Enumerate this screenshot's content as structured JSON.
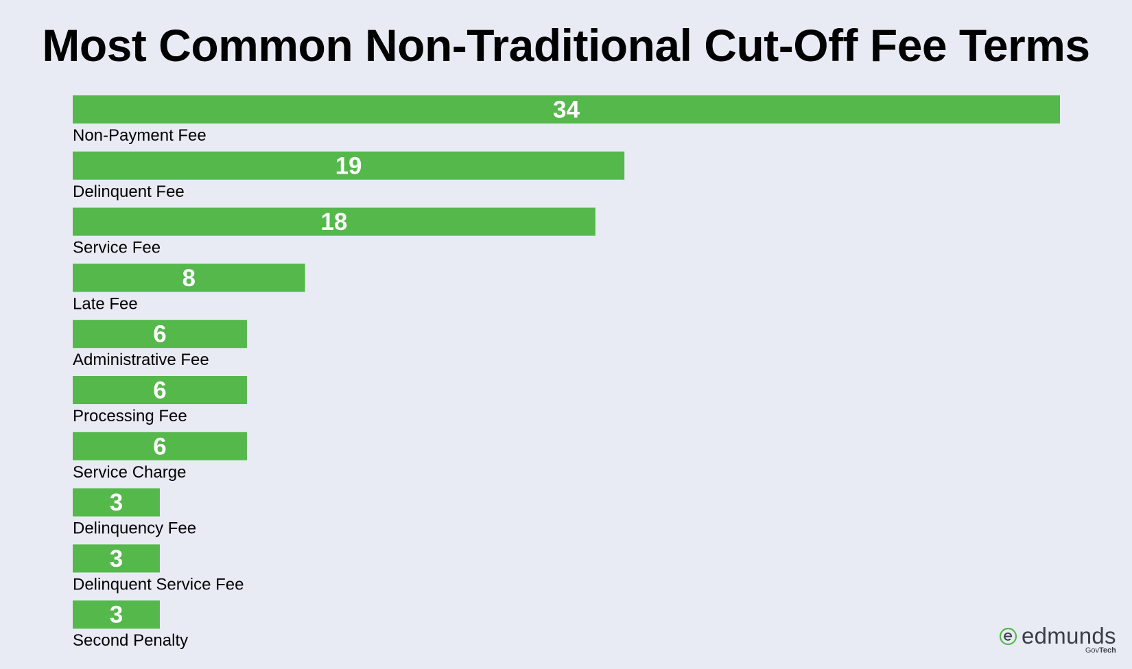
{
  "chart_data": {
    "type": "bar",
    "orientation": "horizontal",
    "title": "Most Common Non-Traditional Cut-Off Fee Terms",
    "xlabel": "",
    "ylabel": "",
    "categories": [
      "Non-Payment Fee",
      "Delinquent Fee",
      "Service Fee",
      "Late Fee",
      "Administrative Fee",
      "Processing Fee",
      "Service Charge",
      "Delinquency Fee",
      "Delinquent Service Fee",
      "Second Penalty"
    ],
    "values": [
      34,
      19,
      18,
      8,
      6,
      6,
      6,
      3,
      3,
      3
    ],
    "xlim": [
      0,
      34
    ],
    "grid": false,
    "legend": "none",
    "data_labels": "inside-bar",
    "colors": {
      "bar": "#54b84b",
      "value_text": "#ffffff",
      "background": "#e9ebf4"
    }
  },
  "logo": {
    "name": "edmunds",
    "sub_prefix": "Gov",
    "sub_suffix": "Tech",
    "icon": "edmunds-e-icon",
    "color": "#54b84b"
  }
}
